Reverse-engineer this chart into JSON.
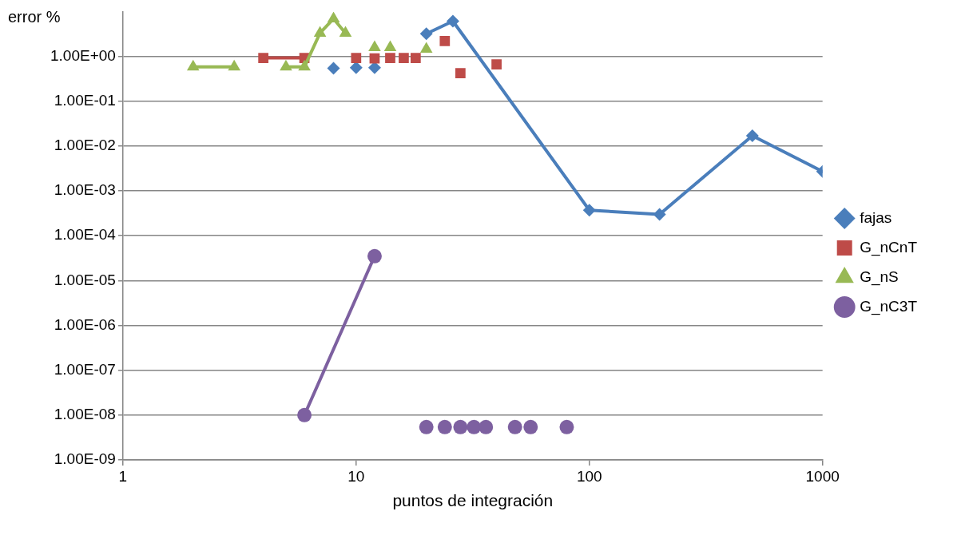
{
  "chart_data": {
    "type": "line",
    "xlabel": "puntos de integración",
    "ylabel": "error %",
    "log": "xy",
    "grid": "y",
    "legend": "right",
    "xlim": [
      1,
      1000
    ],
    "xticks": [
      1,
      10,
      100,
      1000
    ],
    "ylim": [
      1e-09,
      10
    ],
    "yticks": [
      {
        "value": 1e-09,
        "label": "1.00E-09"
      },
      {
        "value": 1e-08,
        "label": "1.00E-08"
      },
      {
        "value": 1e-07,
        "label": "1.00E-07"
      },
      {
        "value": 1e-06,
        "label": "1.00E-06"
      },
      {
        "value": 1e-05,
        "label": "1.00E-05"
      },
      {
        "value": 0.0001,
        "label": "1.00E-04"
      },
      {
        "value": 0.001,
        "label": "1.00E-03"
      },
      {
        "value": 0.01,
        "label": "1.00E-02"
      },
      {
        "value": 0.1,
        "label": "1.00E-01"
      },
      {
        "value": 1,
        "label": "1.00E+00"
      }
    ],
    "series": [
      {
        "name": "fajas",
        "color": "#4a7ebb",
        "marker": "diamond",
        "x": [
          8,
          9,
          10,
          11,
          12,
          16,
          20,
          26,
          100,
          200,
          500,
          1000
        ],
        "values": [
          0.54,
          null,
          0.56,
          null,
          0.56,
          null,
          3.2,
          6.1,
          0.00037,
          0.0003,
          0.017,
          0.0027
        ]
      },
      {
        "name": "G_nCnT",
        "color": "#be4b48",
        "marker": "square",
        "x": [
          4,
          6,
          8,
          10,
          11,
          12,
          13,
          14,
          15,
          16,
          17,
          18,
          21,
          24,
          26,
          28,
          34,
          40
        ],
        "values": [
          0.92,
          0.92,
          null,
          0.92,
          null,
          0.9,
          null,
          0.92,
          null,
          0.92,
          null,
          0.92,
          null,
          2.2,
          null,
          0.42,
          null,
          0.66
        ]
      },
      {
        "name": "G_nS",
        "color": "#98b954",
        "marker": "triangle",
        "x": [
          2,
          3,
          4,
          5,
          6,
          7,
          8,
          9,
          10,
          12,
          13,
          14,
          17,
          20
        ],
        "values": [
          0.58,
          0.58,
          null,
          0.58,
          0.58,
          3.3,
          6.9,
          3.3,
          null,
          1.57,
          null,
          1.57,
          null,
          1.45
        ]
      },
      {
        "name": "G_nC3T",
        "color": "#7d60a0",
        "marker": "circle",
        "x": [
          6,
          12,
          16,
          20,
          22,
          24,
          26,
          28,
          30,
          32,
          34,
          36,
          42,
          48,
          52,
          56,
          68,
          80
        ],
        "values": [
          1e-08,
          3.5e-05,
          null,
          5.4e-09,
          null,
          5.4e-09,
          null,
          5.4e-09,
          null,
          5.4e-09,
          null,
          5.4e-09,
          null,
          5.4e-09,
          null,
          5.4e-09,
          null,
          5.4e-09
        ]
      }
    ]
  }
}
